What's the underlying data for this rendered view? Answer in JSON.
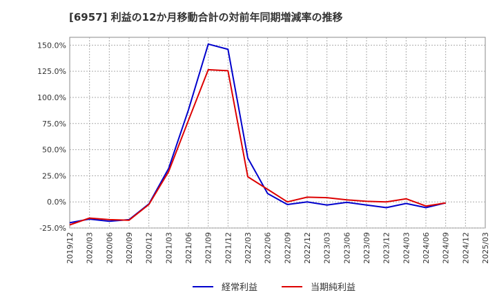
{
  "chart_data": {
    "type": "line",
    "title": "[6957]  利益の12か月移動合計の対前年同期増減率の推移",
    "xlabel": "",
    "ylabel": "",
    "ylim": [
      -25,
      157.5
    ],
    "yticks": [
      -25,
      0,
      25,
      50,
      75,
      100,
      125,
      150
    ],
    "ytick_labels": [
      "-25.0%",
      "0.0%",
      "25.0%",
      "50.0%",
      "75.0%",
      "100.0%",
      "125.0%",
      "150.0%"
    ],
    "xtick_labels": [
      "2019/12",
      "2020/03",
      "2020/06",
      "2020/09",
      "2020/12",
      "2021/03",
      "2021/06",
      "2021/09",
      "2021/12",
      "2022/03",
      "2022/06",
      "2022/09",
      "2022/12",
      "2023/03",
      "2023/06",
      "2023/09",
      "2023/12",
      "2024/03",
      "2024/06",
      "2024/09",
      "2024/12",
      "2025/03"
    ],
    "grid": true,
    "legend_position": "bottom",
    "series": [
      {
        "name": "経常利益",
        "color": "#0000cc",
        "x": [
          "2019/12",
          "2020/03",
          "2020/06",
          "2020/09",
          "2020/12",
          "2021/03",
          "2021/06",
          "2021/09",
          "2021/12",
          "2022/03",
          "2022/06",
          "2022/09",
          "2022/12",
          "2023/03",
          "2023/06",
          "2023/09",
          "2023/12",
          "2024/03",
          "2024/06",
          "2024/09",
          "2024/12"
        ],
        "values": [
          -20,
          -16.5,
          -18.5,
          -17,
          -2,
          32,
          88,
          151,
          146,
          42,
          8,
          -2.5,
          0,
          -3,
          -0.5,
          -3,
          -5.5,
          -1.5,
          -5.5,
          -1,
          null
        ]
      },
      {
        "name": "当期純利益",
        "color": "#dd0000",
        "x": [
          "2019/12",
          "2020/03",
          "2020/06",
          "2020/09",
          "2020/12",
          "2021/03",
          "2021/06",
          "2021/09",
          "2021/12",
          "2022/03",
          "2022/06",
          "2022/09",
          "2022/12",
          "2023/03",
          "2023/06",
          "2023/09",
          "2023/12",
          "2024/03",
          "2024/06",
          "2024/09",
          "2024/12"
        ],
        "values": [
          -22,
          -15.5,
          -17,
          -17.5,
          -2.5,
          29,
          78,
          126.5,
          125.5,
          24,
          12,
          0,
          4.5,
          4,
          2,
          0.5,
          0,
          3,
          -4,
          -1,
          null
        ]
      }
    ]
  }
}
